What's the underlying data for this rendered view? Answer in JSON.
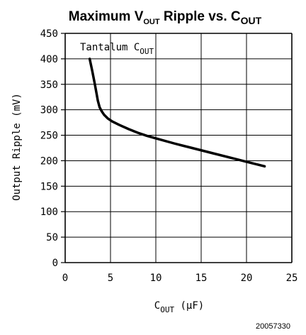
{
  "chart_data": {
    "type": "line",
    "title": {
      "main1": "Maximum V",
      "sub1": "OUT",
      "main2": " Ripple vs. C",
      "sub2": "OUT"
    },
    "xlabel": {
      "main": "C",
      "sub": "OUT",
      "rest": " (µF)"
    },
    "ylabel": "Output Ripple (mV)",
    "annotation": {
      "main": "Tantalum C",
      "sub": "OUT"
    },
    "xlim": [
      0,
      25
    ],
    "ylim": [
      0,
      450
    ],
    "x_ticks": [
      0,
      5,
      10,
      15,
      20,
      25
    ],
    "y_ticks": [
      0,
      50,
      100,
      150,
      200,
      250,
      300,
      350,
      400,
      450
    ],
    "grid": true,
    "series": [
      {
        "x": [
          2.7,
          3.0,
          3.3,
          3.6,
          3.8,
          4.0,
          4.3,
          4.7,
          5.2,
          6.0,
          7.0,
          8.0,
          9.0,
          10.0,
          12.0,
          14.0,
          16.0,
          18.0,
          20.0,
          22.0
        ],
        "values": [
          400,
          375,
          348,
          318,
          305,
          298,
          290,
          283,
          277,
          270,
          262,
          255,
          249,
          244,
          234,
          225,
          216,
          207,
          198,
          189
        ]
      }
    ],
    "figure_id": "20057330"
  }
}
